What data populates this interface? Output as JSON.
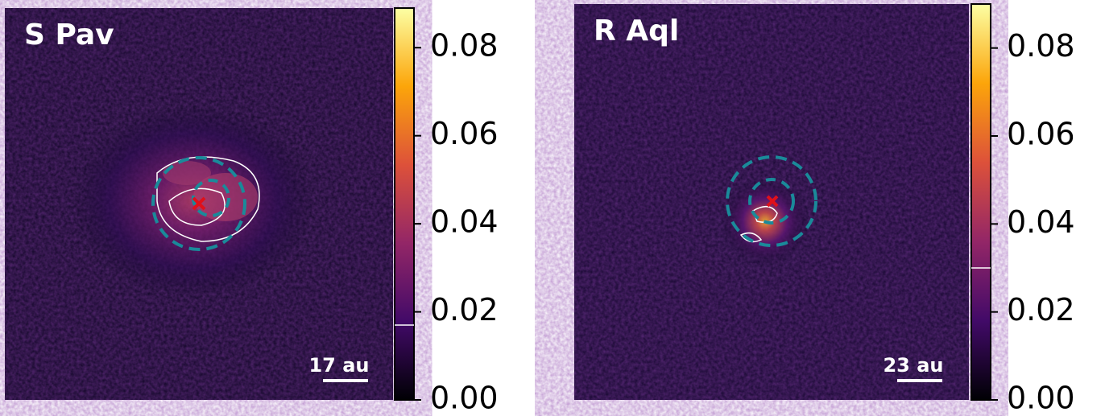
{
  "panels": [
    {
      "title": "S Pav",
      "scalebar": "17 au",
      "colorbar": {
        "lim": [
          0,
          0.089
        ],
        "ticks": [
          {
            "value": 0,
            "label": "0.00"
          },
          0.02,
          0.04,
          0.06,
          0.08
        ],
        "contour_level": 0.017
      }
    },
    {
      "title": "R Aql",
      "scalebar": "23 au",
      "colorbar": {
        "lim": [
          0,
          0.09
        ],
        "ticks": [
          {
            "value": 0,
            "label": "0.00"
          },
          0.02,
          0.04,
          0.06,
          0.08
        ],
        "contour_level": 0.03
      }
    }
  ]
}
